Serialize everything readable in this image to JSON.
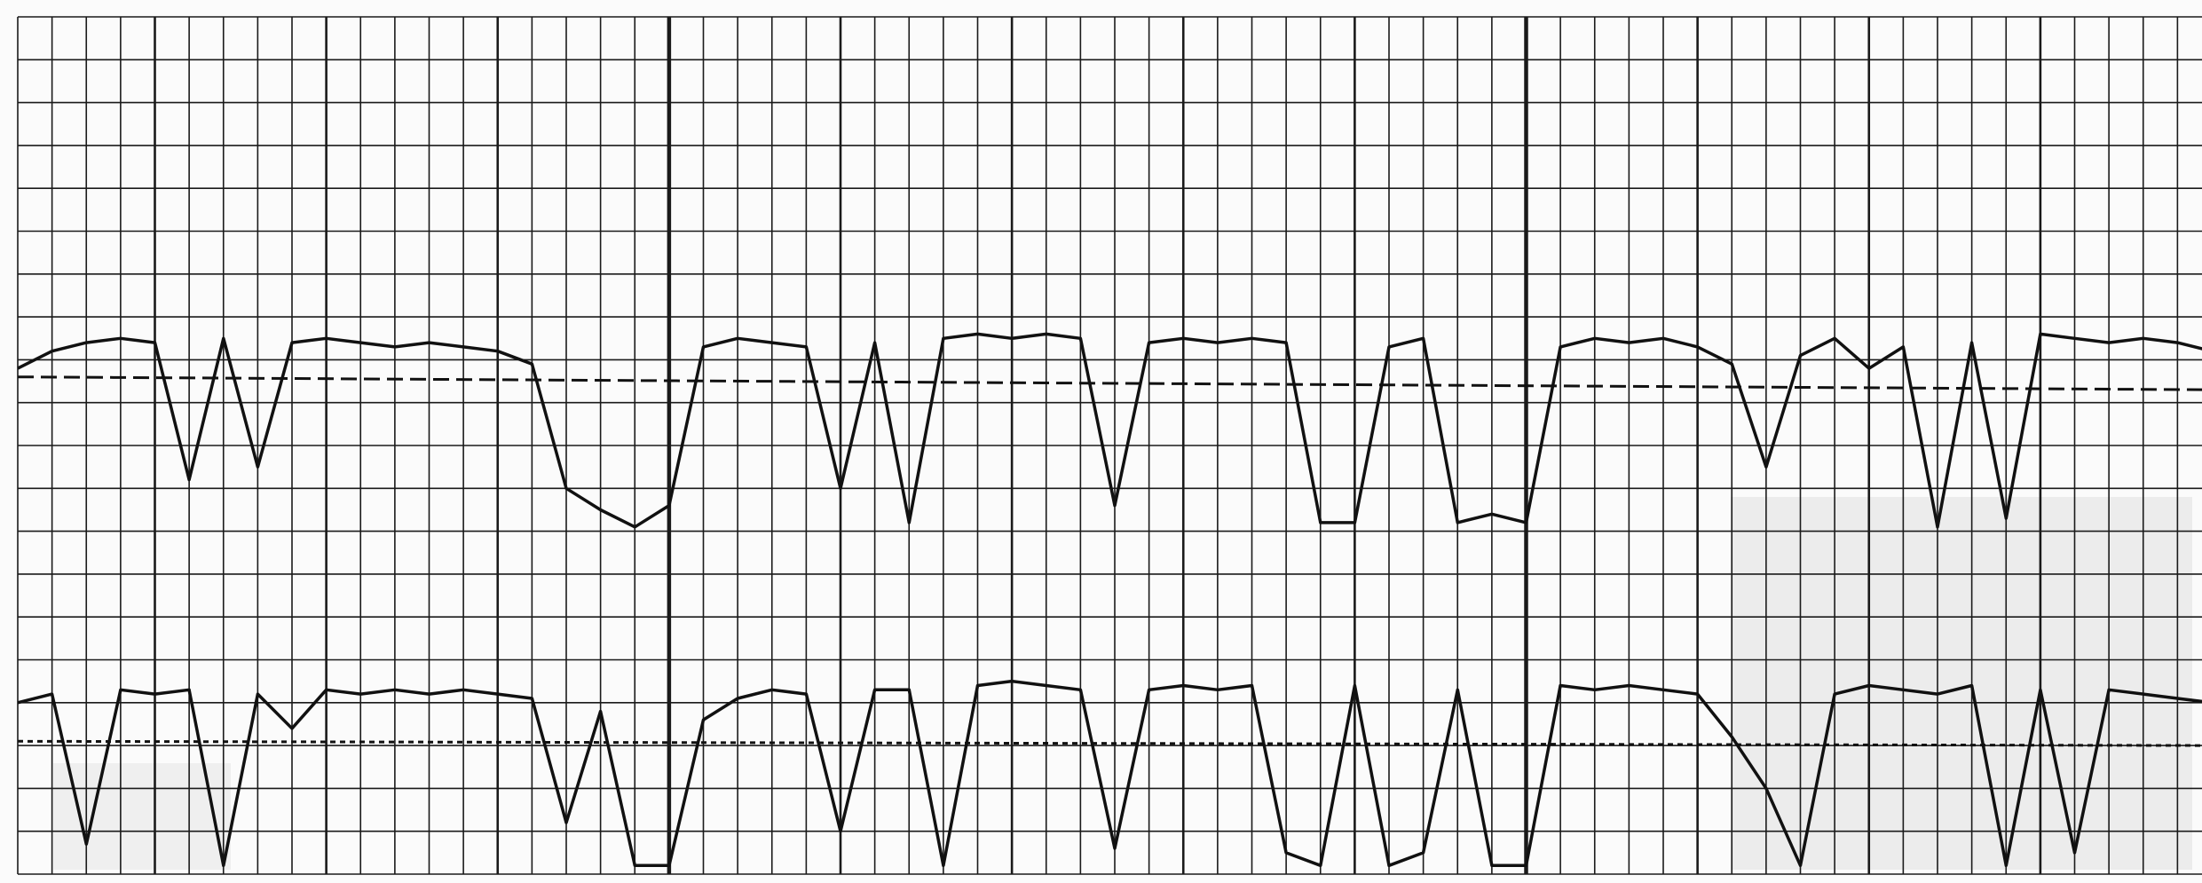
{
  "chart_data": {
    "type": "line",
    "x": [
      0,
      1,
      2,
      3,
      4,
      5,
      6,
      7,
      8,
      9,
      10,
      11,
      12,
      13,
      14,
      15,
      16,
      17,
      18,
      19,
      20,
      21,
      22,
      23,
      24,
      25,
      26,
      27,
      28,
      29,
      30,
      31,
      32,
      33,
      34,
      35,
      36,
      37,
      38,
      39,
      40,
      41,
      42,
      43,
      44,
      45,
      46,
      47,
      48,
      49,
      50,
      51,
      52,
      53,
      54,
      55,
      56,
      57,
      58,
      59,
      60,
      61,
      62,
      63,
      64
    ],
    "series": [
      {
        "color": "#111111",
        "line_style": "solid",
        "values": [
          11.8,
          12.2,
          12.4,
          12.5,
          12.4,
          9.2,
          12.5,
          9.5,
          12.4,
          12.5,
          12.4,
          12.3,
          12.4,
          12.3,
          12.2,
          11.9,
          9.0,
          8.5,
          8.1,
          8.6,
          12.3,
          12.5,
          12.4,
          12.3,
          9.0,
          12.4,
          8.2,
          12.5,
          12.6,
          12.5,
          12.6,
          12.5,
          8.6,
          12.4,
          12.5,
          12.4,
          12.5,
          12.4,
          8.2,
          8.2,
          12.3,
          12.5,
          8.2,
          8.4,
          8.2,
          12.3,
          12.5,
          12.4,
          12.5,
          12.3,
          11.9,
          9.5,
          12.1,
          12.5,
          11.8,
          12.3,
          8.1,
          12.4,
          8.3,
          12.6,
          12.5,
          12.4,
          12.5,
          12.4,
          12.2
        ]
      },
      {
        "color": "#111111",
        "line_style": "dashed",
        "x": [
          0,
          64
        ],
        "values": [
          11.6,
          11.3
        ]
      },
      {
        "color": "#111111",
        "line_style": "solid",
        "values": [
          4.0,
          4.2,
          0.7,
          4.3,
          4.2,
          4.3,
          0.2,
          4.2,
          3.4,
          4.3,
          4.2,
          4.3,
          4.2,
          4.3,
          4.2,
          4.1,
          1.2,
          3.8,
          0.2,
          0.2,
          3.6,
          4.1,
          4.3,
          4.2,
          1.0,
          4.3,
          4.3,
          0.2,
          4.4,
          4.5,
          4.4,
          4.3,
          0.6,
          4.3,
          4.4,
          4.3,
          4.4,
          0.5,
          0.2,
          4.4,
          0.2,
          0.5,
          4.3,
          0.2,
          0.2,
          4.4,
          4.3,
          4.4,
          4.3,
          4.2,
          3.2,
          2.0,
          0.2,
          4.2,
          4.4,
          4.3,
          4.2,
          4.4,
          0.2,
          4.3,
          0.5,
          4.3,
          4.2,
          4.1,
          4.0
        ]
      },
      {
        "color": "#111111",
        "line_style": "dotted",
        "x": [
          0,
          64
        ],
        "values": [
          3.1,
          3.0
        ]
      }
    ],
    "xlim": [
      0,
      64
    ],
    "ylim": [
      0,
      20
    ],
    "xticks": [
      0,
      1,
      2,
      3,
      4,
      5,
      6,
      7,
      8,
      9,
      10,
      11,
      12,
      13,
      14,
      15,
      16,
      17,
      18,
      19,
      20,
      21,
      22,
      23,
      24,
      25,
      26,
      27,
      28,
      29,
      30,
      31,
      32,
      33,
      34,
      35,
      36,
      37,
      38,
      39,
      40,
      41,
      42,
      43,
      44,
      45,
      46,
      47,
      48,
      49,
      50,
      51,
      52,
      53,
      54,
      55,
      56,
      57,
      58,
      59,
      60,
      61,
      62,
      63
    ],
    "yticks": [
      0,
      1,
      2,
      3,
      4,
      5,
      6,
      7,
      8,
      9,
      10,
      11,
      12,
      13,
      14,
      15,
      16,
      17,
      18,
      19,
      20
    ],
    "grid": true
  }
}
